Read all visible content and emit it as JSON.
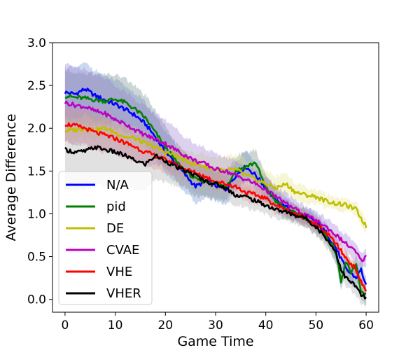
{
  "chart_data": {
    "type": "line",
    "title": "",
    "xlabel": "Game Time",
    "ylabel": "Average Difference",
    "xlim": [
      -2.5,
      62.5
    ],
    "ylim": [
      -0.15,
      3.0
    ],
    "xticks": [
      0,
      10,
      20,
      30,
      40,
      50,
      60
    ],
    "yticks": [
      0.0,
      0.5,
      1.0,
      1.5,
      2.0,
      2.5,
      3.0
    ],
    "xtick_labels": [
      "0",
      "10",
      "20",
      "30",
      "40",
      "50",
      "60"
    ],
    "ytick_labels": [
      "0.0",
      "0.5",
      "1.0",
      "1.5",
      "2.0",
      "2.5",
      "3.0"
    ],
    "grid": false,
    "legend_position": "lower-left",
    "series": [
      {
        "name": "N/A",
        "color": "#0000ff",
        "band_color": "#6b8fd6",
        "x": [
          0,
          2,
          4,
          6,
          8,
          10,
          12,
          14,
          16,
          18,
          20,
          22,
          24,
          26,
          28,
          30,
          32,
          34,
          36,
          38,
          40,
          42,
          44,
          46,
          48,
          50,
          52,
          54,
          56,
          58,
          59,
          60
        ],
        "y": [
          2.42,
          2.4,
          2.46,
          2.38,
          2.33,
          2.28,
          2.22,
          2.15,
          2.05,
          1.9,
          1.72,
          1.6,
          1.45,
          1.32,
          1.38,
          1.33,
          1.28,
          1.45,
          1.55,
          1.45,
          1.3,
          1.15,
          1.08,
          1.0,
          0.98,
          0.9,
          0.78,
          0.6,
          0.35,
          0.25,
          0.35,
          0.15
        ],
        "spread": [
          0.3,
          0.3,
          0.3,
          0.3,
          0.28,
          0.28,
          0.27,
          0.26,
          0.25,
          0.25,
          0.24,
          0.22,
          0.2,
          0.2,
          0.18,
          0.18,
          0.17,
          0.17,
          0.17,
          0.15,
          0.15,
          0.12,
          0.12,
          0.1,
          0.1,
          0.1,
          0.1,
          0.12,
          0.12,
          0.12,
          0.12,
          0.1
        ]
      },
      {
        "name": "pid",
        "color": "#008000",
        "band_color": "#6f8a8a",
        "x": [
          0,
          2,
          4,
          6,
          8,
          10,
          12,
          14,
          16,
          18,
          20,
          22,
          24,
          26,
          28,
          30,
          32,
          34,
          36,
          38,
          40,
          42,
          44,
          46,
          48,
          50,
          52,
          54,
          55,
          56,
          57,
          58,
          59,
          60
        ],
        "y": [
          2.38,
          2.36,
          2.35,
          2.33,
          2.32,
          2.34,
          2.3,
          2.22,
          2.12,
          1.95,
          1.78,
          1.62,
          1.5,
          1.4,
          1.38,
          1.35,
          1.32,
          1.5,
          1.55,
          1.6,
          1.3,
          1.15,
          1.05,
          1.0,
          0.95,
          0.85,
          0.75,
          0.55,
          0.2,
          0.45,
          0.3,
          0.4,
          0.1,
          0.05
        ],
        "spread": [
          0.3,
          0.3,
          0.3,
          0.3,
          0.3,
          0.28,
          0.28,
          0.27,
          0.26,
          0.25,
          0.24,
          0.22,
          0.2,
          0.2,
          0.18,
          0.18,
          0.17,
          0.17,
          0.17,
          0.15,
          0.15,
          0.12,
          0.12,
          0.1,
          0.1,
          0.1,
          0.1,
          0.12,
          0.12,
          0.12,
          0.12,
          0.12,
          0.1,
          0.1
        ]
      },
      {
        "name": "DE",
        "color": "#bfbf00",
        "band_color": "#e5e58a",
        "x": [
          0,
          2,
          4,
          6,
          8,
          10,
          12,
          14,
          16,
          18,
          20,
          22,
          24,
          26,
          28,
          30,
          32,
          34,
          36,
          38,
          40,
          42,
          44,
          46,
          48,
          50,
          52,
          54,
          56,
          58,
          59,
          60
        ],
        "y": [
          1.97,
          1.98,
          2.0,
          1.98,
          2.0,
          1.95,
          1.9,
          1.88,
          1.82,
          1.78,
          1.72,
          1.68,
          1.62,
          1.58,
          1.55,
          1.52,
          1.5,
          1.52,
          1.45,
          1.4,
          1.35,
          1.3,
          1.35,
          1.25,
          1.22,
          1.2,
          1.15,
          1.12,
          1.1,
          1.05,
          0.95,
          0.85
        ],
        "spread": [
          0.12,
          0.12,
          0.12,
          0.12,
          0.12,
          0.12,
          0.12,
          0.12,
          0.12,
          0.12,
          0.12,
          0.12,
          0.12,
          0.12,
          0.13,
          0.14,
          0.16,
          0.18,
          0.18,
          0.16,
          0.15,
          0.14,
          0.12,
          0.1,
          0.1,
          0.08,
          0.08,
          0.08,
          0.07,
          0.07,
          0.08,
          0.08
        ]
      },
      {
        "name": "CVAE",
        "color": "#bf00bf",
        "band_color": "#9b7fd0",
        "x": [
          0,
          2,
          4,
          6,
          8,
          10,
          12,
          14,
          16,
          18,
          20,
          22,
          24,
          26,
          28,
          30,
          32,
          34,
          36,
          38,
          40,
          42,
          44,
          46,
          48,
          50,
          52,
          54,
          56,
          58,
          59,
          60
        ],
        "y": [
          2.3,
          2.27,
          2.25,
          2.2,
          2.17,
          2.1,
          2.05,
          1.98,
          1.92,
          1.87,
          1.82,
          1.75,
          1.68,
          1.62,
          1.58,
          1.52,
          1.5,
          1.45,
          1.4,
          1.35,
          1.28,
          1.2,
          1.12,
          1.05,
          0.98,
          0.92,
          0.85,
          0.75,
          0.65,
          0.55,
          0.45,
          0.5
        ],
        "spread": [
          0.45,
          0.45,
          0.45,
          0.43,
          0.42,
          0.4,
          0.38,
          0.36,
          0.34,
          0.3,
          0.28,
          0.25,
          0.22,
          0.2,
          0.18,
          0.18,
          0.17,
          0.17,
          0.16,
          0.15,
          0.14,
          0.13,
          0.12,
          0.11,
          0.1,
          0.1,
          0.1,
          0.1,
          0.1,
          0.1,
          0.1,
          0.1
        ]
      },
      {
        "name": "VHE",
        "color": "#ff0000",
        "band_color": "#f08a8a",
        "x": [
          0,
          2,
          4,
          6,
          8,
          10,
          12,
          14,
          16,
          18,
          20,
          22,
          24,
          26,
          28,
          30,
          32,
          34,
          36,
          38,
          40,
          42,
          44,
          46,
          48,
          50,
          52,
          54,
          56,
          58,
          59,
          60
        ],
        "y": [
          2.05,
          2.03,
          2.0,
          1.95,
          1.92,
          1.88,
          1.83,
          1.78,
          1.72,
          1.68,
          1.63,
          1.58,
          1.52,
          1.48,
          1.43,
          1.38,
          1.35,
          1.32,
          1.25,
          1.22,
          1.18,
          1.1,
          1.05,
          1.0,
          0.95,
          0.88,
          0.78,
          0.65,
          0.48,
          0.35,
          0.2,
          0.1
        ],
        "spread": [
          0.2,
          0.2,
          0.2,
          0.2,
          0.2,
          0.18,
          0.18,
          0.17,
          0.16,
          0.15,
          0.15,
          0.14,
          0.13,
          0.12,
          0.12,
          0.11,
          0.1,
          0.1,
          0.1,
          0.1,
          0.1,
          0.09,
          0.09,
          0.08,
          0.08,
          0.08,
          0.08,
          0.08,
          0.08,
          0.08,
          0.08,
          0.08
        ]
      },
      {
        "name": "VHER",
        "color": "#000000",
        "band_color": "#a9a9a9",
        "x": [
          0,
          2,
          4,
          6,
          8,
          10,
          12,
          14,
          16,
          18,
          20,
          22,
          24,
          26,
          28,
          30,
          32,
          34,
          36,
          38,
          40,
          42,
          44,
          46,
          48,
          50,
          52,
          54,
          55,
          56,
          57,
          58,
          59,
          60
        ],
        "y": [
          1.75,
          1.72,
          1.73,
          1.78,
          1.75,
          1.72,
          1.68,
          1.62,
          1.58,
          1.68,
          1.62,
          1.55,
          1.5,
          1.45,
          1.38,
          1.35,
          1.3,
          1.22,
          1.2,
          1.15,
          1.1,
          1.05,
          1.02,
          0.98,
          0.95,
          0.85,
          0.72,
          0.55,
          0.35,
          0.25,
          0.2,
          0.15,
          0.05,
          0.02
        ],
        "spread": [
          0.45,
          0.45,
          0.45,
          0.45,
          0.42,
          0.4,
          0.37,
          0.34,
          0.3,
          0.28,
          0.25,
          0.22,
          0.2,
          0.18,
          0.17,
          0.15,
          0.14,
          0.13,
          0.12,
          0.12,
          0.11,
          0.1,
          0.1,
          0.1,
          0.1,
          0.1,
          0.1,
          0.1,
          0.1,
          0.1,
          0.1,
          0.1,
          0.1,
          0.1
        ]
      }
    ]
  }
}
